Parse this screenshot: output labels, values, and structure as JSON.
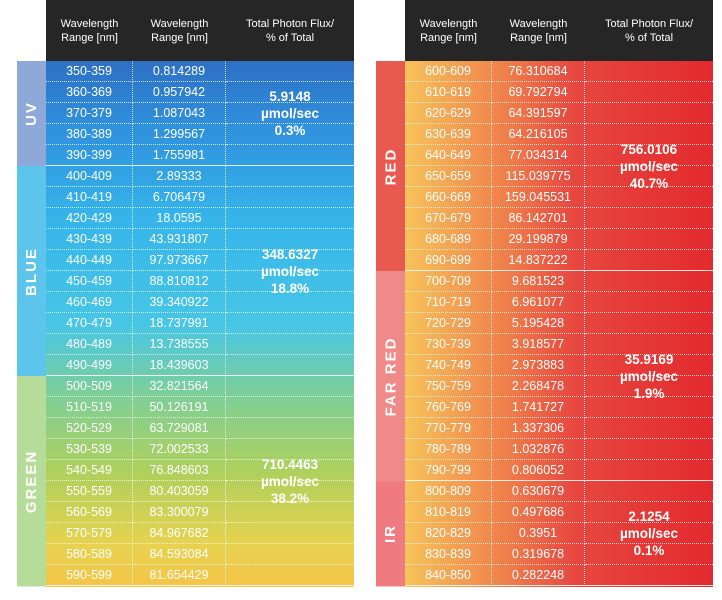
{
  "header": {
    "col1": "Wavelength\nRange [nm]",
    "col2": "Wavelength\nRange [nm]",
    "col3": "Total Photon Flux/\n% of Total"
  },
  "left_table": {
    "groups": [
      {
        "name": "UV",
        "color": "#8ea8d8",
        "total": {
          "value": "5.9148",
          "unit": "µmol/sec",
          "percent": "0.3%"
        },
        "rows": [
          {
            "range": "350-359",
            "flux": "0.814289"
          },
          {
            "range": "360-369",
            "flux": "0.957942"
          },
          {
            "range": "370-379",
            "flux": "1.087043"
          },
          {
            "range": "380-389",
            "flux": "1.299567"
          },
          {
            "range": "390-399",
            "flux": "1.755981"
          }
        ]
      },
      {
        "name": "BLUE",
        "color": "#5dc4eb",
        "total": {
          "value": "348.6327",
          "unit": "µmol/sec",
          "percent": "18.8%"
        },
        "rows": [
          {
            "range": "400-409",
            "flux": "2.89333"
          },
          {
            "range": "410-419",
            "flux": "6.706479"
          },
          {
            "range": "420-429",
            "flux": "18.0595"
          },
          {
            "range": "430-439",
            "flux": "43.931807"
          },
          {
            "range": "440-449",
            "flux": "97.973667"
          },
          {
            "range": "450-459",
            "flux": "88.810812"
          },
          {
            "range": "460-469",
            "flux": "39.340922"
          },
          {
            "range": "470-479",
            "flux": "18.737991"
          },
          {
            "range": "480-489",
            "flux": "13.738555"
          },
          {
            "range": "490-499",
            "flux": "18.439603"
          }
        ]
      },
      {
        "name": "GREEN",
        "color": "#b6dc9a",
        "total": {
          "value": "710.4463",
          "unit": "µmol/sec",
          "percent": "38.2%"
        },
        "rows": [
          {
            "range": "500-509",
            "flux": "32.821564"
          },
          {
            "range": "510-519",
            "flux": "50.126191"
          },
          {
            "range": "520-529",
            "flux": "63.729081"
          },
          {
            "range": "530-539",
            "flux": "72.002533"
          },
          {
            "range": "540-549",
            "flux": "76.848603"
          },
          {
            "range": "550-559",
            "flux": "80.403059"
          },
          {
            "range": "560-569",
            "flux": "83.300079"
          },
          {
            "range": "570-579",
            "flux": "84.967682"
          },
          {
            "range": "580-589",
            "flux": "84.593084"
          },
          {
            "range": "590-599",
            "flux": "81.654429"
          }
        ]
      }
    ]
  },
  "right_table": {
    "groups": [
      {
        "name": "RED",
        "color": "#e85a50",
        "total": {
          "value": "756.0106",
          "unit": "µmol/sec",
          "percent": "40.7%"
        },
        "rows": [
          {
            "range": "600-609",
            "flux": "76.310684"
          },
          {
            "range": "610-619",
            "flux": "69.792794"
          },
          {
            "range": "620-629",
            "flux": "64.391597"
          },
          {
            "range": "630-639",
            "flux": "64.216105"
          },
          {
            "range": "640-649",
            "flux": "77.034314"
          },
          {
            "range": "650-659",
            "flux": "115.039775"
          },
          {
            "range": "660-669",
            "flux": "159.045531"
          },
          {
            "range": "670-679",
            "flux": "86.142701"
          },
          {
            "range": "680-689",
            "flux": "29.199879"
          },
          {
            "range": "690-699",
            "flux": "14.837222"
          }
        ]
      },
      {
        "name": "FAR RED",
        "color": "#ef8a88",
        "total": {
          "value": "35.9169",
          "unit": "µmol/sec",
          "percent": "1.9%"
        },
        "rows": [
          {
            "range": "700-709",
            "flux": "9.681523"
          },
          {
            "range": "710-719",
            "flux": "6.961077"
          },
          {
            "range": "720-729",
            "flux": "5.195428"
          },
          {
            "range": "730-739",
            "flux": "3.918577"
          },
          {
            "range": "740-749",
            "flux": "2.973883"
          },
          {
            "range": "750-759",
            "flux": "2.268478"
          },
          {
            "range": "760-769",
            "flux": "1.741727"
          },
          {
            "range": "770-779",
            "flux": "1.337306"
          },
          {
            "range": "780-789",
            "flux": "1.032876"
          },
          {
            "range": "790-799",
            "flux": "0.806052"
          }
        ]
      },
      {
        "name": "IR",
        "color": "#ef7b80",
        "total": {
          "value": "2.1254",
          "unit": "µmol/sec",
          "percent": "0.1%"
        },
        "rows": [
          {
            "range": "800-809",
            "flux": "0.630679"
          },
          {
            "range": "810-819",
            "flux": "0.497686"
          },
          {
            "range": "820-829",
            "flux": "0.3951"
          },
          {
            "range": "830-839",
            "flux": "0.319678"
          },
          {
            "range": "840-850",
            "flux": "0.282248"
          }
        ]
      }
    ]
  }
}
